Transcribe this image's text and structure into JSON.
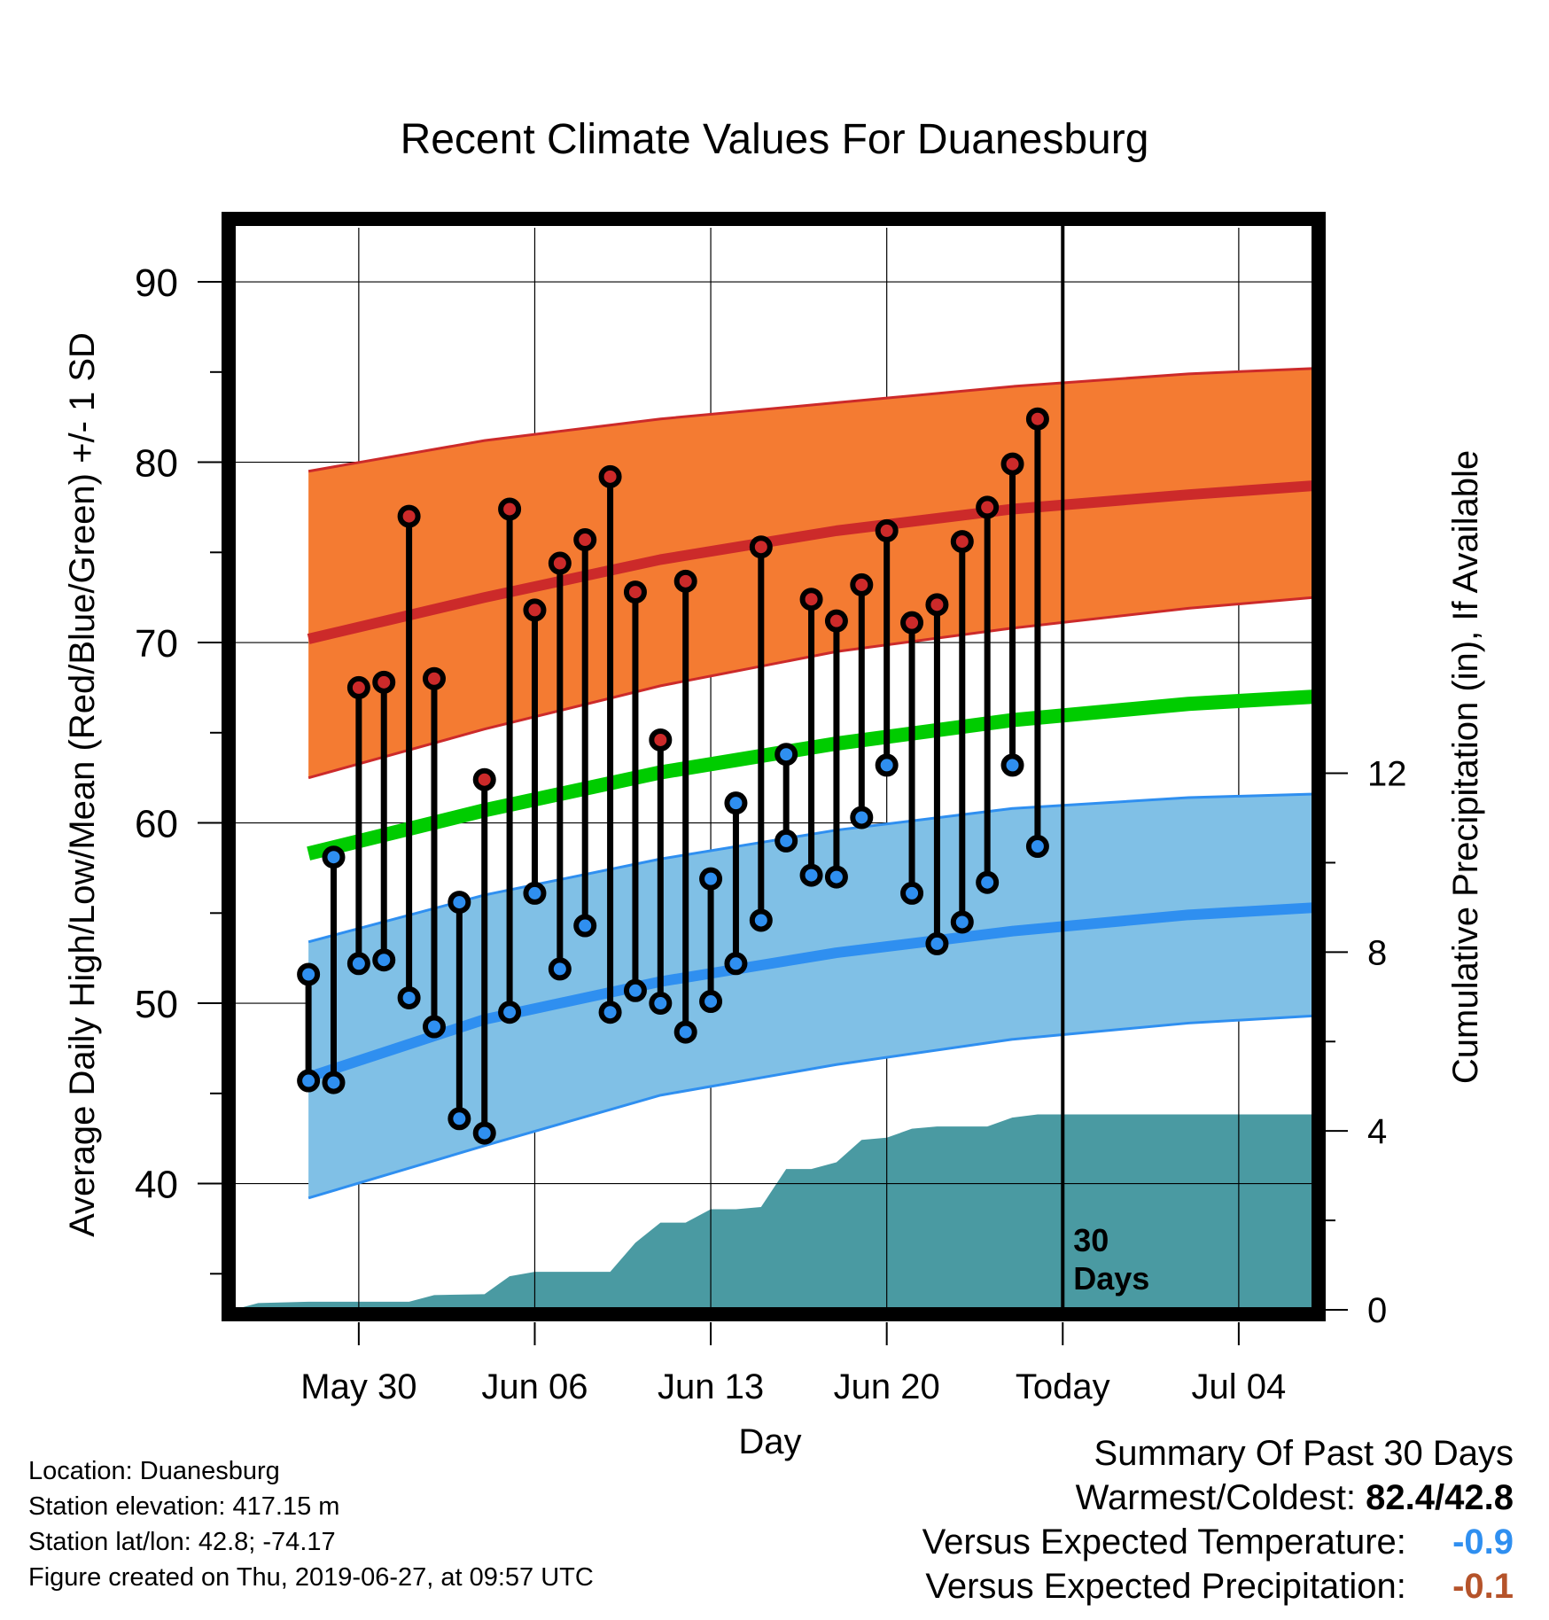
{
  "title": "Recent Climate Values For Duanesburg",
  "footer": {
    "location": "Location: Duanesburg",
    "elevation": "Station elevation: 417.15 m",
    "latlon": "Station lat/lon: 42.8; -74.17",
    "created": "Figure created on Thu, 2019-06-27, at 09:57 UTC"
  },
  "summary": {
    "heading": "Summary Of Past 30 Days",
    "warm_cold_label": "Warmest/Coldest:",
    "warm_cold_value": "82.4/42.8",
    "temp_label": "Versus Expected Temperature:",
    "temp_value": "-0.9",
    "precip_label": "Versus Expected Precipitation:",
    "precip_value": "-0.1"
  },
  "colors": {
    "high_band": "#f47b32",
    "high_line": "#cc2a2a",
    "low_band": "#80c0e6",
    "low_line": "#2f8ff0",
    "mean_line": "#00cc00",
    "precip": "#4a9aa2",
    "high_marker": "#cc2a2a",
    "low_marker": "#2f8ff0",
    "temp_value": "#2f8ff0",
    "precip_value": "#b5532a"
  },
  "chart_data": {
    "type": "line",
    "xlabel": "Day",
    "ylabel": "Average Daily High/Low/Mean (Red/Blue/Green) +/- 1 SD",
    "y2label": "Cumulative Precipitation (in), If Available",
    "ylim": [
      33,
      93
    ],
    "y_ticks": [
      40,
      50,
      60,
      70,
      80,
      90
    ],
    "y2lim": [
      0,
      24.2
    ],
    "y2_ticks": [
      0,
      4,
      8,
      12
    ],
    "xlim": [
      "2019-05-25",
      "2019-07-07"
    ],
    "x_tick_labels": [
      {
        "date": "2019-05-30",
        "label": "May 30"
      },
      {
        "date": "2019-06-06",
        "label": "Jun 06"
      },
      {
        "date": "2019-06-13",
        "label": "Jun 13"
      },
      {
        "date": "2019-06-20",
        "label": "Jun 20"
      },
      {
        "date": "2019-06-27",
        "label": "Today"
      },
      {
        "date": "2019-07-04",
        "label": "Jul 04"
      }
    ],
    "today": "2019-06-27",
    "today_annotation": [
      "30",
      "Days"
    ],
    "grid": true,
    "normals": {
      "dates": [
        "2019-05-28",
        "2019-06-04",
        "2019-06-11",
        "2019-06-18",
        "2019-06-25",
        "2019-07-02",
        "2019-07-07"
      ],
      "high_mean": [
        70.2,
        72.5,
        74.6,
        76.2,
        77.4,
        78.2,
        78.7
      ],
      "high_upper": [
        79.5,
        81.2,
        82.4,
        83.3,
        84.2,
        84.9,
        85.2
      ],
      "high_lower": [
        62.5,
        65.2,
        67.6,
        69.5,
        70.8,
        71.9,
        72.5
      ],
      "mean": [
        58.3,
        60.7,
        62.8,
        64.4,
        65.7,
        66.6,
        67.0
      ],
      "low_mean": [
        45.9,
        49.1,
        51.2,
        52.8,
        54.0,
        54.9,
        55.3
      ],
      "low_upper": [
        53.4,
        56.0,
        58.0,
        59.6,
        60.8,
        61.4,
        61.6
      ],
      "low_lower": [
        39.2,
        42.1,
        44.9,
        46.6,
        48.0,
        48.9,
        49.3
      ]
    },
    "observed": {
      "dates": [
        "2019-05-28",
        "2019-05-29",
        "2019-05-30",
        "2019-05-31",
        "2019-06-01",
        "2019-06-02",
        "2019-06-03",
        "2019-06-04",
        "2019-06-05",
        "2019-06-06",
        "2019-06-07",
        "2019-06-08",
        "2019-06-09",
        "2019-06-10",
        "2019-06-11",
        "2019-06-12",
        "2019-06-13",
        "2019-06-14",
        "2019-06-15",
        "2019-06-16",
        "2019-06-17",
        "2019-06-18",
        "2019-06-19",
        "2019-06-20",
        "2019-06-21",
        "2019-06-22",
        "2019-06-23",
        "2019-06-24",
        "2019-06-25",
        "2019-06-26"
      ],
      "high": [
        51.6,
        58.1,
        67.5,
        67.8,
        77.0,
        68.0,
        55.6,
        62.4,
        77.4,
        71.8,
        74.4,
        75.7,
        79.2,
        72.8,
        64.6,
        73.4,
        56.9,
        61.1,
        75.3,
        63.8,
        72.4,
        71.2,
        73.2,
        76.2,
        71.1,
        72.1,
        75.6,
        77.5,
        79.9,
        82.4
      ],
      "low": [
        45.7,
        45.6,
        52.2,
        52.4,
        50.3,
        48.7,
        43.6,
        42.8,
        49.5,
        56.1,
        51.9,
        54.3,
        49.5,
        50.7,
        50.0,
        48.4,
        50.1,
        52.2,
        54.6,
        59.0,
        57.1,
        57.0,
        60.3,
        63.2,
        56.1,
        53.3,
        54.5,
        56.7,
        63.2,
        58.7
      ]
    },
    "precip_cumulative": {
      "dates": [
        "2019-05-25",
        "2019-05-26",
        "2019-05-28",
        "2019-06-01",
        "2019-06-02",
        "2019-06-04",
        "2019-06-05",
        "2019-06-06",
        "2019-06-09",
        "2019-06-10",
        "2019-06-11",
        "2019-06-12",
        "2019-06-13",
        "2019-06-14",
        "2019-06-15",
        "2019-06-16",
        "2019-06-17",
        "2019-06-18",
        "2019-06-19",
        "2019-06-20",
        "2019-06-21",
        "2019-06-22",
        "2019-06-24",
        "2019-06-25",
        "2019-06-26",
        "2019-07-07"
      ],
      "values": [
        0.0,
        0.15,
        0.18,
        0.18,
        0.33,
        0.35,
        0.75,
        0.85,
        0.85,
        1.5,
        1.95,
        1.95,
        2.25,
        2.25,
        2.3,
        3.15,
        3.15,
        3.3,
        3.8,
        3.85,
        4.05,
        4.1,
        4.1,
        4.3,
        4.37,
        4.37
      ]
    }
  }
}
